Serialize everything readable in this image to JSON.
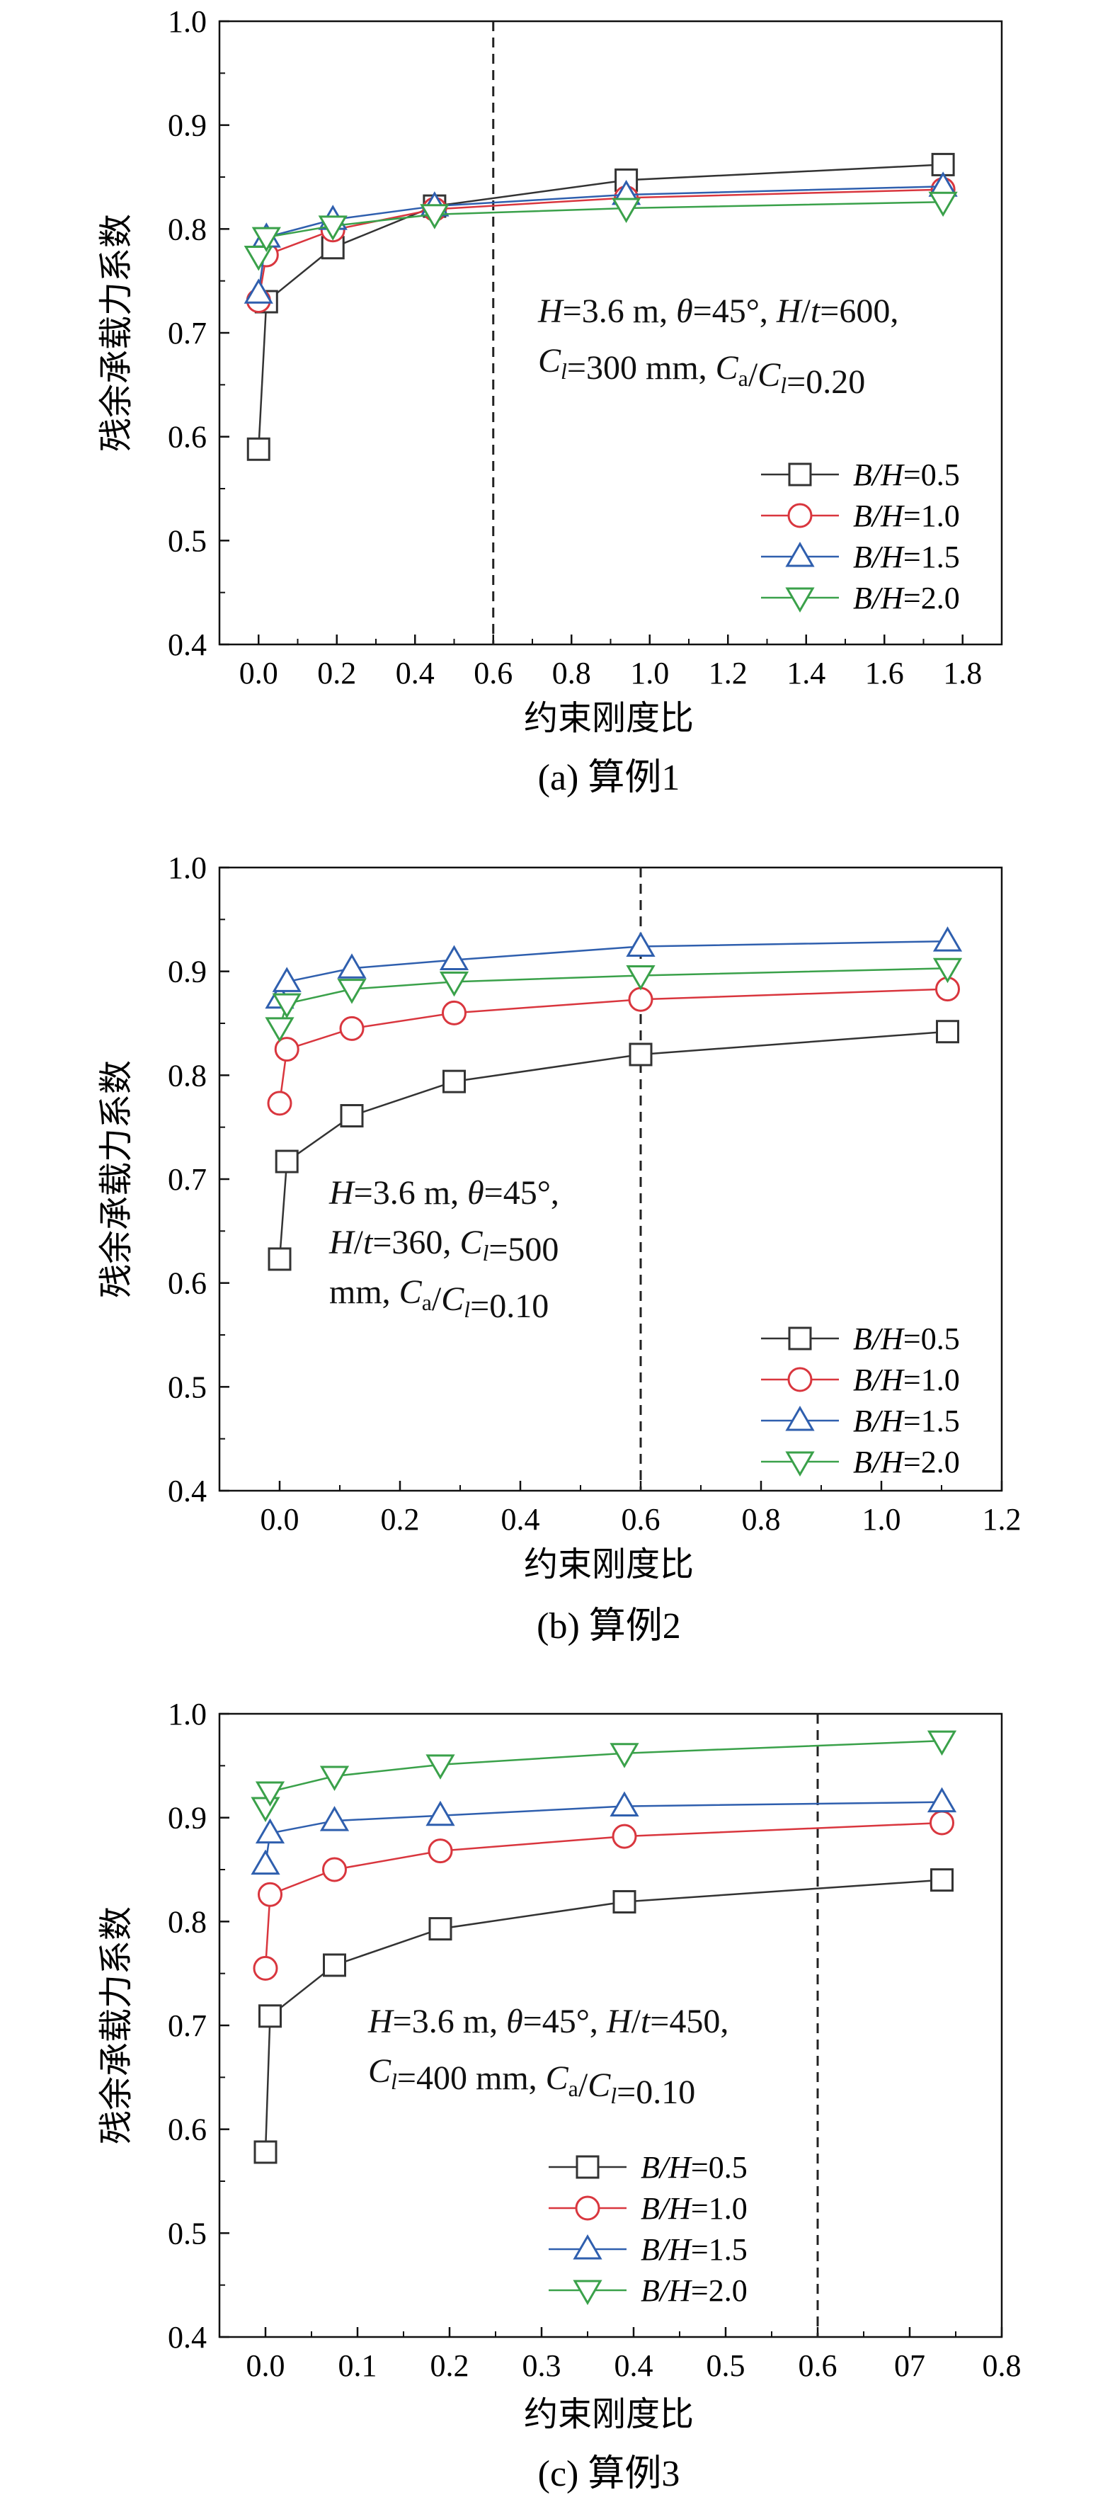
{
  "colors": {
    "s05": "#333333",
    "s10": "#d9363e",
    "s15": "#2f5fae",
    "s20": "#3aa14a",
    "axis": "#111111",
    "vline": "#222222"
  },
  "chart_data": [
    {
      "type": "line",
      "caption": "(a) 算例1",
      "xlabel": "约束刚度比",
      "ylabel": "残余承载力系数",
      "xlim": [
        -0.1,
        1.9
      ],
      "ylim": [
        0.4,
        1.0
      ],
      "xticks": [
        "0.0",
        "0.2",
        "0.4",
        "0.6",
        "0.8",
        "1.0",
        "1.2",
        "1.4",
        "1.6",
        "1.8"
      ],
      "yticks": [
        "0.4",
        "0.5",
        "0.6",
        "0.7",
        "0.8",
        "0.9",
        "1.0"
      ],
      "vline": 0.6,
      "annotation": [
        "H=3.6 m, θ=45°, H/t=600,",
        "Cl=300 mm, Ca/Cl=0.20"
      ],
      "legend_position": "lower-right",
      "series": [
        {
          "name": "B/H=0.5",
          "marker": "square",
          "x": [
            0.0,
            0.02,
            0.19,
            0.45,
            0.94,
            1.75
          ],
          "y": [
            0.588,
            0.73,
            0.782,
            0.822,
            0.847,
            0.862
          ]
        },
        {
          "name": "B/H=1.0",
          "marker": "circle",
          "x": [
            0.0,
            0.02,
            0.19,
            0.45,
            0.94,
            1.75
          ],
          "y": [
            0.731,
            0.775,
            0.799,
            0.819,
            0.83,
            0.838
          ]
        },
        {
          "name": "B/H=1.5",
          "marker": "triangle-up",
          "x": [
            0.0,
            0.02,
            0.19,
            0.45,
            0.94,
            1.75
          ],
          "y": [
            0.738,
            0.792,
            0.809,
            0.822,
            0.833,
            0.841
          ]
        },
        {
          "name": "B/H=2.0",
          "marker": "triangle-down",
          "x": [
            0.0,
            0.02,
            0.19,
            0.45,
            0.94,
            1.75
          ],
          "y": [
            0.774,
            0.792,
            0.803,
            0.814,
            0.82,
            0.826
          ]
        }
      ]
    },
    {
      "type": "line",
      "caption": "(b) 算例2",
      "xlabel": "约束刚度比",
      "ylabel": "残余承载力系数",
      "xlim": [
        -0.1,
        1.2
      ],
      "ylim": [
        0.4,
        1.0
      ],
      "xticks": [
        "0.0",
        "0.2",
        "0.4",
        "0.6",
        "0.8",
        "1.0",
        "1.2"
      ],
      "yticks": [
        "0.4",
        "0.5",
        "0.6",
        "0.7",
        "0.8",
        "0.9",
        "1.0"
      ],
      "vline": 0.6,
      "annotation": [
        "H=3.6 m, θ=45°,",
        "H/t=360, Cl=500",
        "mm, Ca/Cl=0.10"
      ],
      "legend_position": "lower-right",
      "series": [
        {
          "name": "B/H=0.5",
          "marker": "square",
          "x": [
            0.0,
            0.012,
            0.12,
            0.29,
            0.6,
            1.11
          ],
          "y": [
            0.623,
            0.717,
            0.761,
            0.794,
            0.82,
            0.842
          ]
        },
        {
          "name": "B/H=1.0",
          "marker": "circle",
          "x": [
            0.0,
            0.012,
            0.12,
            0.29,
            0.6,
            1.11
          ],
          "y": [
            0.773,
            0.825,
            0.845,
            0.86,
            0.873,
            0.883
          ]
        },
        {
          "name": "B/H=1.5",
          "marker": "triangle-up",
          "x": [
            0.0,
            0.012,
            0.12,
            0.29,
            0.6,
            1.11
          ],
          "y": [
            0.874,
            0.89,
            0.903,
            0.911,
            0.924,
            0.929
          ]
        },
        {
          "name": "B/H=2.0",
          "marker": "triangle-down",
          "x": [
            0.0,
            0.012,
            0.12,
            0.29,
            0.6,
            1.11
          ],
          "y": [
            0.846,
            0.869,
            0.883,
            0.89,
            0.896,
            0.903
          ]
        }
      ]
    },
    {
      "type": "line",
      "caption": "(c) 算例3",
      "xlabel": "约束刚度比",
      "ylabel": "残余承载力系数",
      "xlim": [
        -0.05,
        0.8
      ],
      "ylim": [
        0.4,
        1.0
      ],
      "xticks": [
        "0.0",
        "0.1",
        "0.2",
        "0.3",
        "0.4",
        "0.5",
        "0.6",
        "07",
        "0.8"
      ],
      "yticks": [
        "0.4",
        "0.5",
        "0.6",
        "0.7",
        "0.8",
        "0.9",
        "1.0"
      ],
      "vline": 0.6,
      "annotation": [
        "H=3.6 m, θ=45°, H/t=450,",
        "Cl=400 mm, Ca/Cl=0.10"
      ],
      "legend_position": "lower-center",
      "series": [
        {
          "name": "B/H=0.5",
          "marker": "square",
          "x": [
            0.0,
            0.005,
            0.075,
            0.19,
            0.39,
            0.735
          ],
          "y": [
            0.578,
            0.709,
            0.758,
            0.793,
            0.819,
            0.84
          ]
        },
        {
          "name": "B/H=1.0",
          "marker": "circle",
          "x": [
            0.0,
            0.005,
            0.075,
            0.19,
            0.39,
            0.735
          ],
          "y": [
            0.755,
            0.826,
            0.85,
            0.868,
            0.882,
            0.895
          ]
        },
        {
          "name": "B/H=1.5",
          "marker": "triangle-up",
          "x": [
            0.0,
            0.005,
            0.075,
            0.19,
            0.39,
            0.735
          ],
          "y": [
            0.855,
            0.885,
            0.897,
            0.902,
            0.911,
            0.915
          ]
        },
        {
          "name": "B/H=2.0",
          "marker": "triangle-down",
          "x": [
            0.0,
            0.005,
            0.075,
            0.19,
            0.39,
            0.735
          ],
          "y": [
            0.91,
            0.925,
            0.94,
            0.951,
            0.962,
            0.974
          ]
        }
      ]
    }
  ]
}
